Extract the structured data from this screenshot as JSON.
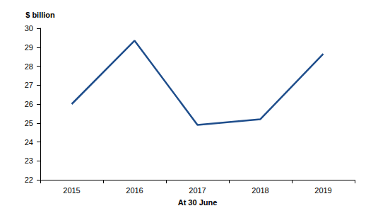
{
  "chart_data": {
    "type": "line",
    "ylabel": "$ billion",
    "xlabel": "At 30 June",
    "categories": [
      "2015",
      "2016",
      "2017",
      "2018",
      "2019"
    ],
    "values": [
      26.0,
      29.35,
      24.9,
      25.2,
      28.65
    ],
    "color": "#1f4e8c",
    "ylim": [
      22,
      30
    ],
    "yticks": [
      22,
      23,
      24,
      25,
      26,
      27,
      28,
      29,
      30
    ],
    "grid": false
  }
}
